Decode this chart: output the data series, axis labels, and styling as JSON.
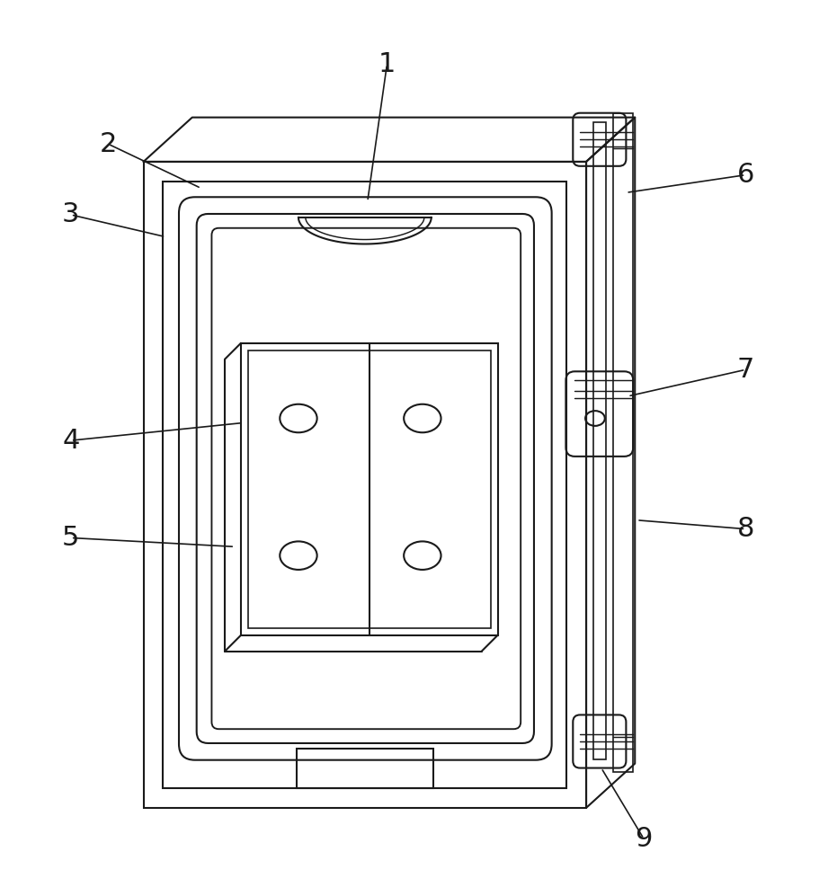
{
  "bg_color": "#ffffff",
  "line_color": "#1a1a1a",
  "line_width": 1.5,
  "fig_width": 9.21,
  "fig_height": 9.97
}
